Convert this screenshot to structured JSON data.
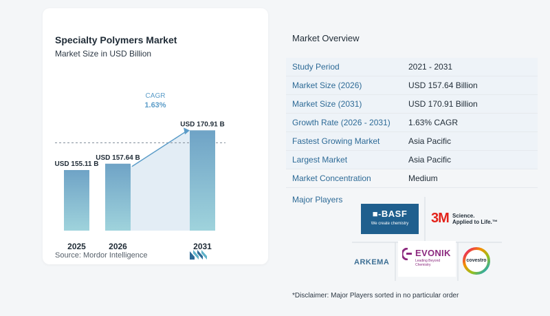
{
  "chart": {
    "title": "Specialty Polymers Market",
    "subtitle": "Market Size in USD Billion",
    "source": "Source:  Mordor Intelligence",
    "cagr_label": "CAGR",
    "cagr_value": "1.63%"
  },
  "chart_data": {
    "type": "bar",
    "categories": [
      "2025",
      "2026",
      "2031"
    ],
    "values": [
      155.11,
      157.64,
      170.91
    ],
    "value_labels": [
      "USD 155.11 B",
      "USD 157.64 B",
      "USD 170.91 B"
    ],
    "title": "Specialty Polymers Market",
    "subtitle": "Market Size in USD Billion",
    "xlabel": "",
    "ylabel": "",
    "grid": false,
    "annotation": "CAGR 1.63%"
  },
  "overview": {
    "title": "Market Overview",
    "rows": [
      {
        "label": "Study Period",
        "value": "2021 - 2031"
      },
      {
        "label": "Market Size (2026)",
        "value": "USD 157.64 Billion"
      },
      {
        "label": "Market Size (2031)",
        "value": "USD 170.91 Billion"
      },
      {
        "label": "Growth Rate (2026 - 2031)",
        "value": "1.63% CAGR"
      },
      {
        "label": "Fastest Growing Market",
        "value": "Asia Pacific"
      },
      {
        "label": "Largest Market",
        "value": "Asia Pacific"
      },
      {
        "label": "Market Concentration",
        "value": "Medium"
      }
    ]
  },
  "players": {
    "title": "Major Players",
    "basf": {
      "name": "BASF",
      "tagline": "We create chemistry",
      "mark": "■-"
    },
    "threem": {
      "name": "3M",
      "tagline_1": "Science.",
      "tagline_2": "Applied to Life.™"
    },
    "arkema": {
      "name": "ARKEMA"
    },
    "evonik": {
      "name": "EVONIK",
      "tagline": "Leading Beyond Chemistry"
    },
    "covestro": {
      "name": "covestro"
    }
  },
  "disclaimer": "*Disclaimer: Major Players sorted in no particular order",
  "colors": {
    "bar_top": "#6fa3c6",
    "bar_bottom": "#9fd3dc",
    "accent": "#2d6a96",
    "cagr": "#5b9cc8"
  }
}
